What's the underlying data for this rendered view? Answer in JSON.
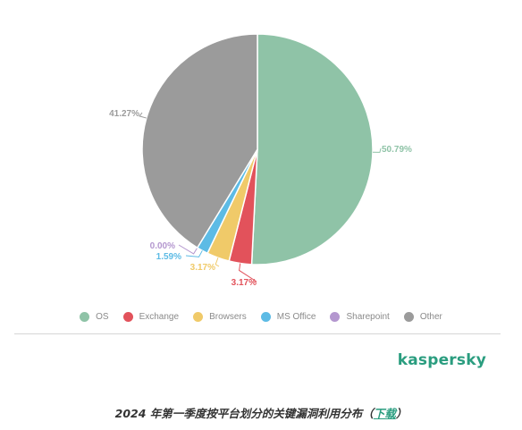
{
  "chart_data": {
    "type": "pie",
    "slices": [
      {
        "name": "OS",
        "value": 50.79,
        "label": "50.79%",
        "color": "#8fc3a7"
      },
      {
        "name": "Exchange",
        "value": 3.17,
        "label": "3.17%",
        "color": "#e2525b"
      },
      {
        "name": "Browsers",
        "value": 3.17,
        "label": "3.17%",
        "color": "#f0ca69"
      },
      {
        "name": "MS Office",
        "value": 1.59,
        "label": "1.59%",
        "color": "#5dbbe5"
      },
      {
        "name": "Sharepoint",
        "value": 0.0,
        "label": "0.00%",
        "color": "#b497cf"
      },
      {
        "name": "Other",
        "value": 41.27,
        "label": "41.27%",
        "color": "#9b9b9b"
      }
    ],
    "legend_position": "bottom"
  },
  "brand": {
    "logo_text": "kaspersky",
    "color": "#2a9d7f"
  },
  "caption": {
    "text_before": "2024 年第一季度按平台划分的关键漏洞利用分布（",
    "link_text": "下载",
    "text_after": "）"
  }
}
